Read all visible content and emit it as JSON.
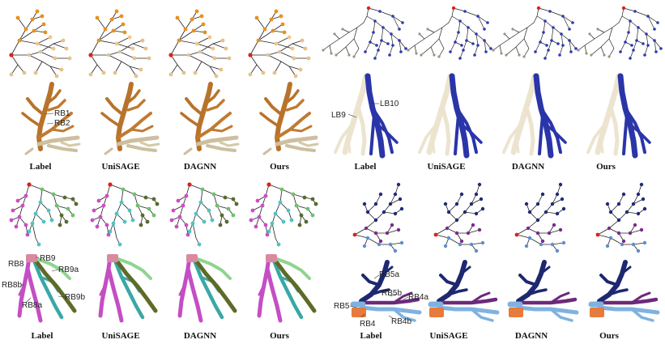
{
  "panels": [
    {
      "id": "top-left",
      "captions": [
        "Label",
        "UniSAGE",
        "DAGNN",
        "Ours"
      ],
      "annotations": [
        "RB1",
        "RB2"
      ],
      "colors": {
        "node_main": "#e8901e",
        "node_light": "#f1c58a",
        "node_tan": "#d7c49e",
        "mesh_a": "#b8732a",
        "mesh_b": "#cdbf9f",
        "root": "#d8241c"
      }
    },
    {
      "id": "top-right",
      "captions": [
        "Label",
        "UniSAGE",
        "DAGNN",
        "Ours"
      ],
      "annotations": [
        "LB9",
        "LB10"
      ],
      "colors": {
        "node_main": "#2b3ab0",
        "node_light": "#9a9480",
        "mesh_a": "#ece4cf",
        "mesh_b": "#2a35a8",
        "root": "#d8241c"
      }
    },
    {
      "id": "bottom-left",
      "captions": [
        "Label",
        "UniSAGE",
        "DAGNN",
        "Ours"
      ],
      "annotations": [
        "RB8",
        "RB9",
        "RB9a",
        "RB8b",
        "RB8a",
        "RB9b"
      ],
      "colors": {
        "node_a": "#cc4cc8",
        "node_b": "#52c3c3",
        "node_c": "#6fc070",
        "node_d": "#556b2f",
        "mesh_pink": "#c44ec4",
        "mesh_teal": "#3aa7a7",
        "mesh_green": "#5e6b26",
        "mesh_light": "#8fd48f",
        "root": "#d8241c"
      }
    },
    {
      "id": "bottom-right",
      "captions": [
        "Label",
        "UniSAGE",
        "DAGNN",
        "Ours"
      ],
      "annotations": [
        "RB5a",
        "RB5b",
        "RB4a",
        "RB5",
        "RB4",
        "RB4b"
      ],
      "colors": {
        "node_a": "#1f2a7a",
        "node_b": "#7a2a8a",
        "node_c": "#5a8fd0",
        "mesh_navy": "#1d2870",
        "mesh_purple": "#6b2a7a",
        "mesh_sky": "#7fb2e0",
        "mesh_orange": "#e57b3c",
        "root": "#d8241c"
      }
    }
  ]
}
